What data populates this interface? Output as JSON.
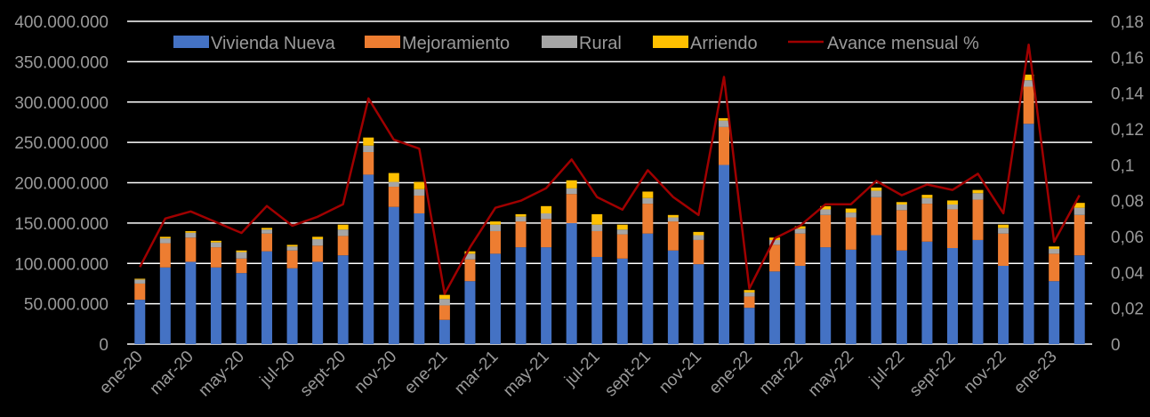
{
  "chart_data": {
    "type": "bar",
    "stacked": true,
    "grid": true,
    "legend_position": "top",
    "categories": [
      "ene-20",
      "feb-20",
      "mar-20",
      "abr-20",
      "may-20",
      "jun-20",
      "jul-20",
      "ago-20",
      "sept-20",
      "oct-20",
      "nov-20",
      "dic-20",
      "ene-21",
      "feb-21",
      "mar-21",
      "abr-21",
      "may-21",
      "jun-21",
      "jul-21",
      "ago-21",
      "sept-21",
      "oct-21",
      "nov-21",
      "dic-21",
      "ene-22",
      "feb-22",
      "mar-22",
      "abr-22",
      "may-22",
      "jun-22",
      "jul-22",
      "ago-22",
      "sept-22",
      "oct-22",
      "nov-22",
      "dic-22",
      "ene-23",
      "feb-23"
    ],
    "x_tick_labels": [
      "ene-20",
      "mar-20",
      "may-20",
      "jul-20",
      "sept-20",
      "nov-20",
      "ene-21",
      "mar-21",
      "may-21",
      "jul-21",
      "sept-21",
      "nov-21",
      "ene-22",
      "mar-22",
      "may-22",
      "jul-22",
      "sept-22",
      "nov-22",
      "ene-23"
    ],
    "y_left": {
      "range": [
        0,
        400000000
      ],
      "ticks": [
        "0",
        "50.000.000",
        "100.000.000",
        "150.000.000",
        "200.000.000",
        "250.000.000",
        "300.000.000",
        "350.000.000",
        "400.000.000"
      ]
    },
    "y_right": {
      "range": [
        0,
        0.18
      ],
      "ticks": [
        "0",
        "0,02",
        "0,04",
        "0,06",
        "0,08",
        "0,1",
        "0,12",
        "0,14",
        "0,16",
        "0,18"
      ]
    },
    "series": [
      {
        "name": "Vivienda Nueva",
        "color": "#4472C4",
        "values": [
          55000000,
          95000000,
          102000000,
          95000000,
          88000000,
          115000000,
          94000000,
          102000000,
          110000000,
          210000000,
          170000000,
          162000000,
          30000000,
          78000000,
          112000000,
          120000000,
          120000000,
          150000000,
          108000000,
          106000000,
          137000000,
          116000000,
          99000000,
          222000000,
          45000000,
          90000000,
          97000000,
          120000000,
          117000000,
          135000000,
          116000000,
          127000000,
          119000000,
          129000000,
          97000000,
          273000000,
          78000000,
          110000000
        ]
      },
      {
        "name": "Mejoramiento",
        "color": "#ED7D31",
        "values": [
          20000000,
          30000000,
          30000000,
          25000000,
          18000000,
          22000000,
          22000000,
          20000000,
          24000000,
          28000000,
          25000000,
          22000000,
          18000000,
          27000000,
          28000000,
          32000000,
          35000000,
          36000000,
          32000000,
          30000000,
          37000000,
          36000000,
          30000000,
          47000000,
          14000000,
          33000000,
          40000000,
          40000000,
          40000000,
          47000000,
          50000000,
          47000000,
          48000000,
          50000000,
          40000000,
          46000000,
          34000000,
          50000000
        ]
      },
      {
        "name": "Rural",
        "color": "#A5A5A5",
        "values": [
          5000000,
          6000000,
          6000000,
          6000000,
          8000000,
          5000000,
          5000000,
          8000000,
          8000000,
          8000000,
          6000000,
          8000000,
          8000000,
          7000000,
          8000000,
          6000000,
          7000000,
          7000000,
          8000000,
          6000000,
          7000000,
          5000000,
          6000000,
          8000000,
          5000000,
          6000000,
          6000000,
          7000000,
          6000000,
          8000000,
          7000000,
          7000000,
          6000000,
          8000000,
          7000000,
          8000000,
          6000000,
          9000000
        ]
      },
      {
        "name": "Arriendo",
        "color": "#FFC000",
        "values": [
          1000000,
          2000000,
          2000000,
          2000000,
          2000000,
          2000000,
          2000000,
          3000000,
          6000000,
          10000000,
          11000000,
          9000000,
          5000000,
          3000000,
          4000000,
          3000000,
          9000000,
          10000000,
          13000000,
          6000000,
          8000000,
          3000000,
          4000000,
          3000000,
          3000000,
          3000000,
          3000000,
          4000000,
          5000000,
          4000000,
          3000000,
          4000000,
          5000000,
          4000000,
          4000000,
          7000000,
          3000000,
          6000000
        ]
      },
      {
        "name": "Avance mensual %",
        "color": "#A00000",
        "type": "line",
        "axis": "right",
        "values": [
          0.043,
          0.07,
          0.074,
          0.068,
          0.062,
          0.077,
          0.066,
          0.071,
          0.078,
          0.137,
          0.114,
          0.109,
          0.028,
          0.054,
          0.076,
          0.08,
          0.087,
          0.103,
          0.082,
          0.075,
          0.097,
          0.082,
          0.072,
          0.149,
          0.031,
          0.059,
          0.066,
          0.078,
          0.078,
          0.091,
          0.083,
          0.089,
          0.086,
          0.095,
          0.073,
          0.167,
          0.057,
          0.083
        ]
      }
    ]
  }
}
